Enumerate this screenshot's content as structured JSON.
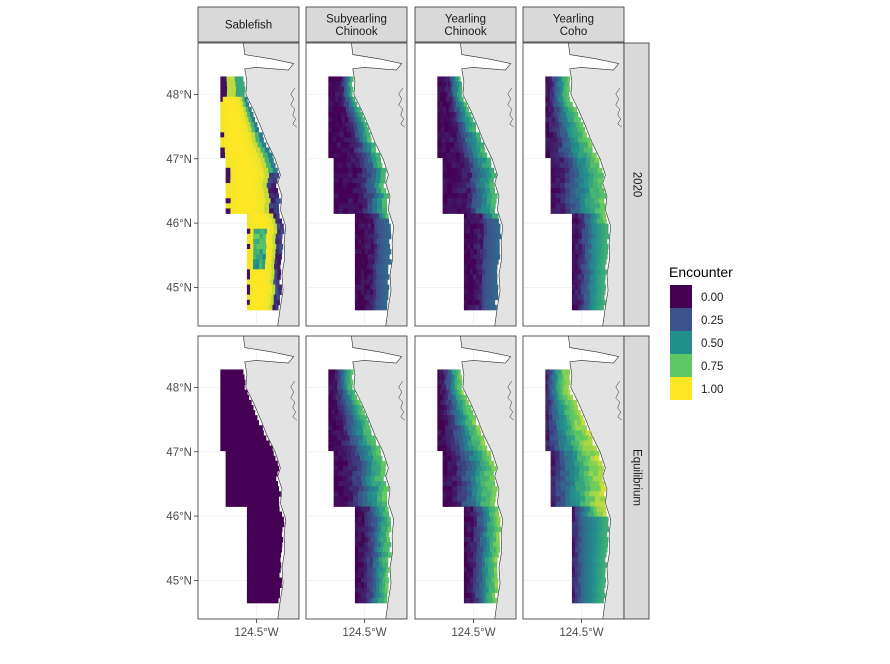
{
  "chart_data": {
    "type": "heatmap",
    "facet_columns": [
      "Sablefish",
      "Subyearling\nChinook",
      "Yearling\nChinook",
      "Yearling\nCoho"
    ],
    "facet_rows": [
      "2020",
      "Equilibrium"
    ],
    "x_tick_labels": [
      "124.5°W"
    ],
    "y_tick_labels": [
      "48°N",
      "47°N",
      "46°N",
      "45°N"
    ],
    "y_ticks": [
      48,
      47,
      46,
      45
    ],
    "ylim": [
      44.4,
      48.8
    ],
    "lon_range": [
      -125.6,
      -123.7
    ],
    "legend": {
      "title": "Encounter",
      "placement": "right",
      "breaks": [
        "0.00",
        "0.25",
        "0.50",
        "0.75",
        "1.00"
      ],
      "colors": [
        "#440154",
        "#3B528B",
        "#21908C",
        "#5DC863",
        "#FDE725"
      ]
    },
    "encounter_gradient_eastward": {
      "2020": {
        "Sablefish": [
          0.98,
          1.0,
          1.0,
          0.97,
          0.3
        ],
        "Subyearling Chinook": [
          0.0,
          0.02,
          0.06,
          0.3,
          0.75
        ],
        "Yearling Chinook": [
          0.0,
          0.03,
          0.1,
          0.42,
          0.7
        ],
        "Yearling Coho": [
          0.02,
          0.12,
          0.35,
          0.6,
          0.78
        ]
      },
      "Equilibrium": {
        "Sablefish": [
          0.0,
          0.0,
          0.0,
          0.0,
          0.0
        ],
        "Subyearling Chinook": [
          0.0,
          0.05,
          0.22,
          0.52,
          0.75
        ],
        "Yearling Chinook": [
          0.0,
          0.08,
          0.3,
          0.6,
          0.82
        ],
        "Yearling Coho": [
          0.05,
          0.3,
          0.55,
          0.78,
          0.9
        ]
      }
    }
  }
}
